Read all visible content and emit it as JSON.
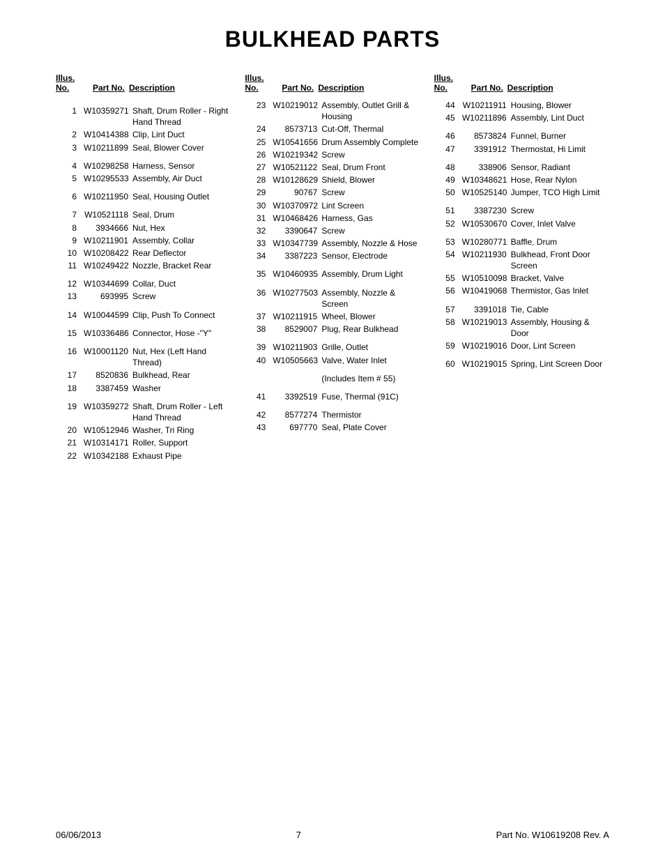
{
  "title": "BULKHEAD PARTS",
  "headers": {
    "illus1": "Illus.",
    "illus2": "No.",
    "part": "Part No.",
    "desc": "Description"
  },
  "footer": {
    "date": "06/06/2013",
    "page": "7",
    "partno": "Part No.  W10619208   Rev.  A"
  },
  "columns": [
    {
      "rows": [
        {
          "type": "spacer"
        },
        {
          "no": "1",
          "part": "W10359271",
          "desc": "Shaft, Drum Roller - Right Hand Thread"
        },
        {
          "no": "2",
          "part": "W10414388",
          "desc": "Clip, Lint Duct"
        },
        {
          "no": "3",
          "part": "W10211899",
          "desc": "Seal, Blower Cover"
        },
        {
          "type": "spacer"
        },
        {
          "no": "4",
          "part": "W10298258",
          "desc": "Harness, Sensor"
        },
        {
          "no": "5",
          "part": "W10295533",
          "desc": "Assembly, Air Duct"
        },
        {
          "type": "spacer"
        },
        {
          "no": "6",
          "part": "W10211950",
          "desc": "Seal, Housing Outlet"
        },
        {
          "type": "spacer"
        },
        {
          "no": "7",
          "part": "W10521118",
          "desc": "Seal, Drum"
        },
        {
          "no": "8",
          "part": "3934666",
          "desc": "Nut, Hex"
        },
        {
          "no": "9",
          "part": "W10211901",
          "desc": "Assembly, Collar"
        },
        {
          "no": "10",
          "part": "W10208422",
          "desc": "Rear Deflector"
        },
        {
          "no": "11",
          "part": "W10249422",
          "desc": "Nozzle, Bracket Rear"
        },
        {
          "type": "spacer"
        },
        {
          "no": "12",
          "part": "W10344699",
          "desc": "Collar, Duct"
        },
        {
          "no": "13",
          "part": "693995",
          "desc": "Screw"
        },
        {
          "type": "spacer"
        },
        {
          "no": "14",
          "part": "W10044599",
          "desc": "Clip, Push To Connect"
        },
        {
          "type": "spacer"
        },
        {
          "no": "15",
          "part": "W10336486",
          "desc": "Connector, Hose -\"Y\""
        },
        {
          "type": "spacer"
        },
        {
          "no": "16",
          "part": "W10001120",
          "desc": "Nut, Hex (Left Hand Thread)"
        },
        {
          "no": "17",
          "part": "8520836",
          "desc": "Bulkhead, Rear"
        },
        {
          "no": "18",
          "part": "3387459",
          "desc": "Washer"
        },
        {
          "type": "spacer"
        },
        {
          "no": "19",
          "part": "W10359272",
          "desc": "Shaft, Drum Roller - Left Hand Thread"
        },
        {
          "no": "20",
          "part": "W10512946",
          "desc": "Washer, Tri Ring"
        },
        {
          "no": "21",
          "part": "W10314171",
          "desc": "Roller, Support"
        },
        {
          "no": "22",
          "part": "W10342188",
          "desc": "Exhaust Pipe"
        }
      ]
    },
    {
      "rows": [
        {
          "no": "23",
          "part": "W10219012",
          "desc": "Assembly, Outlet Grill & Housing"
        },
        {
          "no": "24",
          "part": "8573713",
          "desc": "Cut-Off, Thermal"
        },
        {
          "no": "25",
          "part": "W10541656",
          "desc": "Drum Assembly Complete"
        },
        {
          "no": "26",
          "part": "W10219342",
          "desc": "Screw"
        },
        {
          "no": "27",
          "part": "W10521122",
          "desc": "Seal, Drum Front"
        },
        {
          "no": "28",
          "part": "W10128629",
          "desc": "Shield, Blower"
        },
        {
          "no": "29",
          "part": "90767",
          "desc": "Screw"
        },
        {
          "no": "30",
          "part": "W10370972",
          "desc": "Lint Screen"
        },
        {
          "no": "31",
          "part": "W10468426",
          "desc": "Harness, Gas"
        },
        {
          "no": "32",
          "part": "3390647",
          "desc": "Screw"
        },
        {
          "no": "33",
          "part": "W10347739",
          "desc": "Assembly, Nozzle & Hose"
        },
        {
          "no": "34",
          "part": "3387223",
          "desc": "Sensor, Electrode"
        },
        {
          "type": "spacer"
        },
        {
          "no": "35",
          "part": "W10460935",
          "desc": "Assembly, Drum Light"
        },
        {
          "type": "spacer"
        },
        {
          "no": "36",
          "part": "W10277503",
          "desc": "Assembly, Nozzle & Screen"
        },
        {
          "no": "37",
          "part": "W10211915",
          "desc": "Wheel, Blower"
        },
        {
          "no": "38",
          "part": "8529007",
          "desc": "Plug, Rear Bulkhead"
        },
        {
          "type": "spacer"
        },
        {
          "no": "39",
          "part": "W10211903",
          "desc": "Grille, Outlet"
        },
        {
          "no": "40",
          "part": "W10505663",
          "desc": "Valve, Water Inlet"
        },
        {
          "type": "spacer"
        },
        {
          "no": "",
          "part": "",
          "desc": "(Includes Item # 55)"
        },
        {
          "type": "spacer"
        },
        {
          "no": "41",
          "part": "3392519",
          "desc": "Fuse, Thermal (91C)"
        },
        {
          "type": "spacer"
        },
        {
          "no": "42",
          "part": "8577274",
          "desc": "Thermistor"
        },
        {
          "no": "43",
          "part": "697770",
          "desc": "Seal, Plate Cover"
        }
      ]
    },
    {
      "rows": [
        {
          "no": "44",
          "part": "W10211911",
          "desc": "Housing, Blower"
        },
        {
          "no": "45",
          "part": "W10211896",
          "desc": "Assembly, Lint Duct"
        },
        {
          "type": "spacer"
        },
        {
          "no": "46",
          "part": "8573824",
          "desc": "Funnel, Burner"
        },
        {
          "no": "47",
          "part": "3391912",
          "desc": "Thermostat, Hi Limit"
        },
        {
          "type": "spacer"
        },
        {
          "no": "48",
          "part": "338906",
          "desc": "Sensor, Radiant"
        },
        {
          "no": "49",
          "part": "W10348621",
          "desc": "Hose, Rear Nylon"
        },
        {
          "no": "50",
          "part": "W10525140",
          "desc": "Jumper, TCO High Limit"
        },
        {
          "type": "spacer"
        },
        {
          "no": "51",
          "part": "3387230",
          "desc": "Screw"
        },
        {
          "no": "52",
          "part": "W10530670",
          "desc": "Cover, Inlet Valve"
        },
        {
          "type": "spacer"
        },
        {
          "no": "53",
          "part": "W10280771",
          "desc": "Baffle, Drum"
        },
        {
          "no": "54",
          "part": "W10211930",
          "desc": "Bulkhead, Front Door Screen"
        },
        {
          "no": "55",
          "part": "W10510098",
          "desc": "Bracket, Valve"
        },
        {
          "no": "56",
          "part": "W10419068",
          "desc": "Thermistor, Gas Inlet"
        },
        {
          "type": "spacer"
        },
        {
          "no": "57",
          "part": "3391018",
          "desc": "Tie, Cable"
        },
        {
          "no": "58",
          "part": "W10219013",
          "desc": "Assembly, Housing & Door"
        },
        {
          "no": "59",
          "part": "W10219016",
          "desc": "Door, Lint Screen"
        },
        {
          "type": "spacer"
        },
        {
          "no": "60",
          "part": "W10219015",
          "desc": "Spring, Lint Screen Door"
        }
      ]
    }
  ]
}
